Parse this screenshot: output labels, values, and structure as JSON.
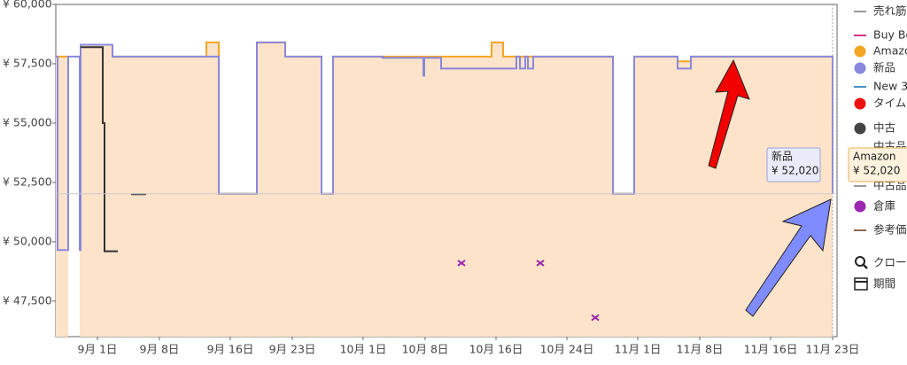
{
  "chart_data": {
    "type": "line",
    "step": true,
    "xlim": [
      -4.7,
      83.5
    ],
    "ylim": [
      46000,
      60000
    ],
    "xticks": [
      {
        "value": 0,
        "label": "9月 1日"
      },
      {
        "value": 7,
        "label": "9月 8日"
      },
      {
        "value": 15,
        "label": "9月 16日"
      },
      {
        "value": 22,
        "label": "9月 23日"
      },
      {
        "value": 30,
        "label": "10月 1日"
      },
      {
        "value": 37,
        "label": "10月 8日"
      },
      {
        "value": 45,
        "label": "10月 16日"
      },
      {
        "value": 53,
        "label": "10月 24日"
      },
      {
        "value": 61,
        "label": "11月 1日"
      },
      {
        "value": 68,
        "label": "11月 8日"
      },
      {
        "value": 76,
        "label": "11月 16日"
      },
      {
        "value": 83,
        "label": "11月 23日"
      }
    ],
    "yticks": [
      {
        "value": 60000,
        "label": "¥ 60,000"
      },
      {
        "value": 57500,
        "label": "¥ 57,500"
      },
      {
        "value": 55000,
        "label": "¥ 55,000"
      },
      {
        "value": 52500,
        "label": "¥ 52,500"
      },
      {
        "value": 50000,
        "label": "¥ 50,000"
      },
      {
        "value": 47500,
        "label": "¥ 47,500"
      }
    ],
    "grid": false,
    "series": [
      {
        "color": "#f5a623",
        "fill": "#fde3c9",
        "x": [
          -4.7,
          -3.3,
          -2.0,
          1.7,
          12.3,
          13.7,
          18.0,
          21.2,
          25.3,
          26.6,
          44.5,
          45.8,
          58.2,
          60.6,
          65.5,
          67.0,
          83.0
        ],
        "values": [
          57800,
          null,
          58300,
          57800,
          58400,
          52020,
          58400,
          57800,
          52020,
          57800,
          58400,
          57800,
          52020,
          57800,
          57600,
          57800,
          52020
        ]
      },
      {
        "color": "#8b87dd",
        "x": [
          -4.7,
          -4.5,
          -3.3,
          -2.0,
          -1.9,
          1.7,
          13.7,
          18.0,
          21.2,
          25.3,
          26.6,
          32.2,
          36.8,
          36.9,
          38.8,
          47.3,
          47.7,
          48.3,
          48.6,
          49.2,
          58.2,
          60.6,
          65.5,
          67.0,
          83.0
        ],
        "values": [
          57800,
          49650,
          57800,
          49650,
          58300,
          57800,
          52020,
          58400,
          57800,
          52020,
          57800,
          57750,
          57000,
          57750,
          57300,
          57800,
          57300,
          57800,
          57300,
          57800,
          52020,
          57800,
          57300,
          57800,
          52020
        ]
      },
      {
        "color": "#333333",
        "x": [
          -1.9,
          0.6,
          0.8,
          2.3,
          3.8,
          5.5
        ],
        "values": [
          58200,
          55000,
          49600,
          null,
          52000,
          null
        ]
      },
      {
        "color": "#9c27b0",
        "marker": "x",
        "x": [
          41.1,
          50.0,
          56.2
        ],
        "values": [
          49100,
          49100,
          46800
        ]
      }
    ],
    "tooltips": [
      {
        "name": "新品",
        "value": 52020,
        "label": "¥ 52,020"
      },
      {
        "name": "Amazon",
        "value": 52020,
        "label": "¥ 52,020"
      }
    ],
    "legend": [
      {
        "label": "売れ筋",
        "color": "#999999",
        "marker": "line"
      },
      {
        "label": "Buy Bo",
        "color": "#d6338a",
        "marker": "line"
      },
      {
        "label": "Amazo",
        "color": "#f5a623",
        "marker": "dot"
      },
      {
        "label": "新品",
        "color": "#8b87dd",
        "marker": "dot"
      },
      {
        "label": "New 3",
        "color": "#4a90c2",
        "marker": "line"
      },
      {
        "label": "タイム",
        "color": "#ee1111",
        "marker": "dot"
      },
      {
        "label": "中古",
        "color": "#444444",
        "marker": "dot"
      },
      {
        "label": "中古品",
        "color": "#999999",
        "marker": "none"
      },
      {
        "label": "中古品",
        "color": "#999999",
        "marker": "line"
      },
      {
        "label": "倉庫",
        "color": "#9c27b0",
        "marker": "dot"
      },
      {
        "label": "参考価",
        "color": "#8a6a50",
        "marker": "line"
      }
    ],
    "tools": [
      "クロー",
      "期間"
    ]
  }
}
